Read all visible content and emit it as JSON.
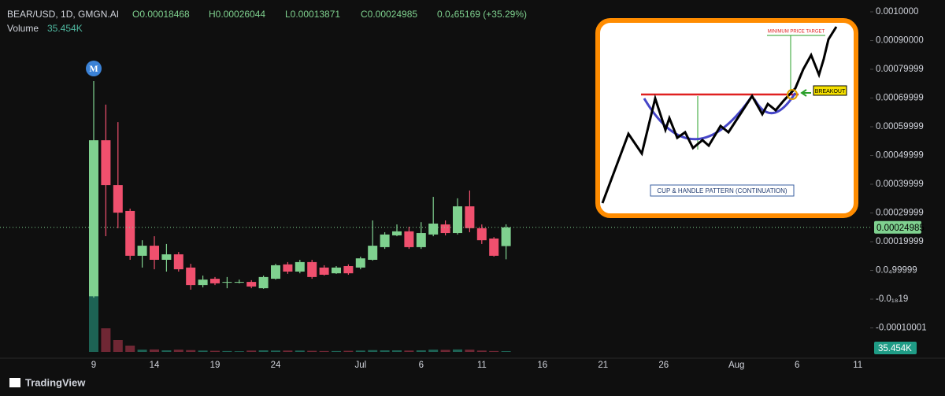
{
  "chart_data": {
    "type": "candlestick",
    "symbol": "BEAR/USD, 1D, GMGN.AI",
    "ohlc_text": [
      "O0.00018468",
      "H0.00026044",
      "L0.00013871",
      "C0.00024985",
      "0.0₄65169 (+35.29%)"
    ],
    "volume_title": "Volume",
    "volume_label": "35.454K",
    "marker": "M",
    "brand": "TradingView",
    "up_color": "#7fd18f",
    "down_color": "#f0506e",
    "last_price": 0.00024985,
    "inset": {
      "target": "MINIMUM PRICE TARGET",
      "breakout": "BREAKOUT",
      "caption": "CUP & HANDLE PATTERN (CONTINUATION)"
    },
    "categories": [
      "9",
      null,
      null,
      null,
      null,
      "14",
      null,
      null,
      null,
      null,
      "19",
      null,
      null,
      null,
      null,
      "24",
      null,
      null,
      null,
      null,
      null,
      null,
      "Jul",
      null,
      null,
      null,
      null,
      "6",
      null,
      null,
      null,
      null,
      "11",
      null,
      null,
      null,
      null,
      "16",
      null,
      null,
      null,
      null,
      "21",
      null,
      null,
      null,
      null,
      "26",
      null,
      null,
      null,
      null,
      null,
      "Aug",
      null,
      null,
      null,
      null,
      "6",
      null,
      null,
      null,
      null,
      "11",
      null,
      null
    ],
    "open": [
      1e-05,
      0.000553,
      0.000397,
      0.000307,
      0.000151,
      0.000186,
      0.000137,
      0.000156,
      0.00011,
      4.9e-05,
      7.1e-05,
      5.8e-05,
      6e-05,
      6e-05,
      3.8e-05,
      7.1e-05,
      0.000121,
      9.6e-05,
      0.000129,
      0.00011,
      9e-05,
      0.000115,
      0.00011,
      0.000137,
      0.000181,
      0.000222,
      0.000236,
      0.000181,
      0.000225,
      0.00026,
      0.00023,
      0.000323,
      0.000247,
      0.000211,
      0.00018468,
      null,
      null,
      null,
      null,
      null,
      null,
      null,
      null,
      null,
      null,
      null,
      null,
      null,
      null,
      null,
      null,
      null,
      null,
      null,
      null,
      null,
      null,
      null,
      null,
      null,
      null,
      null,
      null,
      null,
      null,
      null
    ],
    "high": [
      0.000759,
      0.000677,
      0.000616,
      0.000315,
      0.000205,
      0.000219,
      0.000192,
      0.000164,
      0.000123,
      8.2e-05,
      7.7e-05,
      7.7e-05,
      6.8e-05,
      6.6e-05,
      8.2e-05,
      0.000123,
      0.000129,
      0.000137,
      0.000137,
      0.000118,
      0.000115,
      0.000121,
      0.000148,
      0.000274,
      0.000233,
      0.00026,
      0.000252,
      0.000268,
      0.000356,
      0.000274,
      0.000351,
      0.000378,
      0.00026,
      0.000216,
      0.00026044,
      null,
      null,
      null,
      null,
      null,
      null,
      null,
      null,
      null,
      null,
      null,
      null,
      null,
      null,
      null,
      null,
      null,
      null,
      null,
      null,
      null,
      null,
      null,
      null,
      null,
      null,
      null,
      null,
      null,
      null,
      null
    ],
    "low": [
      5e-06,
      0.000219,
      0.000247,
      0.000137,
      0.00011,
      0.000104,
      9.6e-05,
      9.6e-05,
      3.3e-05,
      4.1e-05,
      4.9e-05,
      3.8e-05,
      5.5e-05,
      3.8e-05,
      3.6e-05,
      6.8e-05,
      8.8e-05,
      9e-05,
      7.1e-05,
      8.2e-05,
      8.8e-05,
      8.5e-05,
      0.000104,
      0.000134,
      0.000175,
      0.000219,
      0.000175,
      0.000175,
      0.000219,
      0.000222,
      0.000225,
      0.000233,
      0.000192,
      0.000148,
      0.00013871,
      null,
      null,
      null,
      null,
      null,
      null,
      null,
      null,
      null,
      null,
      null,
      null,
      null,
      null,
      null,
      null,
      null,
      null,
      null,
      null,
      null,
      null,
      null,
      null,
      null,
      null,
      null,
      null,
      null,
      null,
      null
    ],
    "close": [
      0.000553,
      0.000397,
      0.000301,
      0.000151,
      0.000186,
      0.000137,
      0.000156,
      0.000104,
      4.9e-05,
      6.8e-05,
      5.5e-05,
      6e-05,
      6e-05,
      4.4e-05,
      7.7e-05,
      0.000118,
      9.6e-05,
      0.000129,
      7.7e-05,
      8.5e-05,
      0.00011,
      9e-05,
      0.000142,
      0.000186,
      0.000225,
      0.000236,
      0.000181,
      0.00023,
      0.000263,
      0.00023,
      0.000323,
      0.000247,
      0.000205,
      0.000151,
      0.00024985,
      null,
      null,
      null,
      null,
      null,
      null,
      null,
      null,
      null,
      null,
      null,
      null,
      null,
      null,
      null,
      null,
      null,
      null,
      null,
      null,
      null,
      null,
      null,
      null,
      null,
      null,
      null,
      null,
      null,
      null,
      null
    ],
    "volume": [
      3850,
      1050,
      525,
      280,
      100,
      110,
      70,
      100,
      80,
      60,
      50,
      40,
      30,
      60,
      70,
      60,
      60,
      60,
      50,
      40,
      40,
      50,
      60,
      80,
      70,
      70,
      60,
      70,
      100,
      90,
      110,
      100,
      60,
      40,
      35.454,
      null,
      null,
      null,
      null,
      null,
      null,
      null,
      null,
      null,
      null,
      null,
      null,
      null,
      null,
      null,
      null,
      null,
      null,
      null,
      null,
      null,
      null,
      null,
      null,
      null,
      null,
      null,
      null,
      null,
      null,
      null
    ],
    "ylim": [
      -0.0002055,
      0.0010411
    ],
    "yticks": [
      {
        "value": 0.001,
        "label": "0.0010000"
      },
      {
        "value": 0.0009,
        "label": "0.00090000"
      },
      {
        "value": 0.00079999,
        "label": "0.00079999"
      },
      {
        "value": 0.00069999,
        "label": "0.00069999"
      },
      {
        "value": 0.00059999,
        "label": "0.00059999"
      },
      {
        "value": 0.00049999,
        "label": "0.00049999"
      },
      {
        "value": 0.00039999,
        "label": "0.00039999"
      },
      {
        "value": 0.00029999,
        "label": "0.00029999"
      },
      {
        "value": 0.00019999,
        "label": "0.00019999"
      },
      {
        "value": 9.9999e-05,
        "label": "0.0₄99999"
      },
      {
        "value": -1.9e-19,
        "label": "-0.0₁₈19"
      },
      {
        "value": -0.00010001,
        "label": "-0.00010001"
      }
    ]
  }
}
